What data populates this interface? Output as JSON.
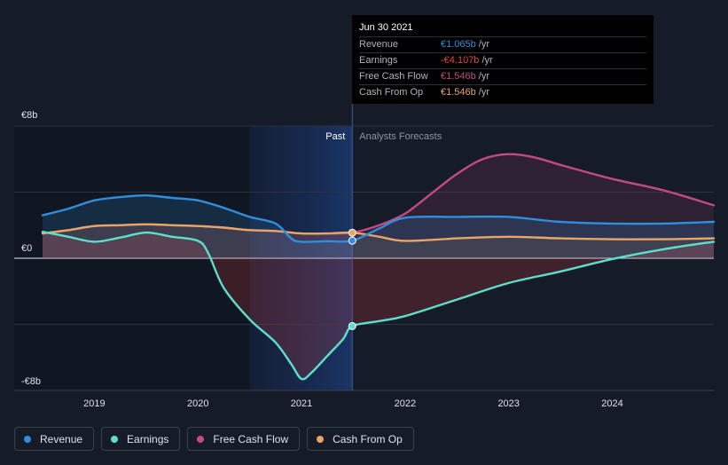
{
  "chart_data": {
    "type": "line",
    "y_label_top": "€8b",
    "y_label_zero": "€0",
    "y_label_bottom": "-€8b",
    "ylim": [
      -8,
      8
    ],
    "xlim": [
      2018.5,
      2024.98
    ],
    "x_ticks": [
      2019,
      2020,
      2021,
      2022,
      2023,
      2024
    ],
    "x_tick_labels": [
      "2019",
      "2020",
      "2021",
      "2022",
      "2023",
      "2024"
    ],
    "divider_x": 2021.49,
    "highlight_start_x": 2020.5,
    "past_label": "Past",
    "forecast_label": "Analysts Forecasts",
    "series": [
      {
        "name": "Revenue",
        "key": "revenue",
        "color": "#2f8fde",
        "points": [
          [
            2018.5,
            2.6
          ],
          [
            2018.75,
            3.0
          ],
          [
            2019.0,
            3.5
          ],
          [
            2019.25,
            3.7
          ],
          [
            2019.5,
            3.8
          ],
          [
            2019.75,
            3.65
          ],
          [
            2020.0,
            3.5
          ],
          [
            2020.25,
            3.05
          ],
          [
            2020.5,
            2.5
          ],
          [
            2020.75,
            2.1
          ],
          [
            2020.9,
            1.2
          ],
          [
            2021.0,
            1.0
          ],
          [
            2021.25,
            1.03
          ],
          [
            2021.49,
            1.065
          ],
          [
            2021.75,
            1.8
          ],
          [
            2022.0,
            2.45
          ],
          [
            2022.5,
            2.5
          ],
          [
            2023.0,
            2.5
          ],
          [
            2023.5,
            2.2
          ],
          [
            2024.0,
            2.1
          ],
          [
            2024.5,
            2.1
          ],
          [
            2024.98,
            2.2
          ]
        ]
      },
      {
        "name": "Earnings",
        "key": "earnings",
        "color": "#5de0cb",
        "points": [
          [
            2018.5,
            1.6
          ],
          [
            2018.75,
            1.3
          ],
          [
            2019.0,
            1.0
          ],
          [
            2019.25,
            1.25
          ],
          [
            2019.5,
            1.55
          ],
          [
            2019.75,
            1.3
          ],
          [
            2020.0,
            1.05
          ],
          [
            2020.1,
            0.3
          ],
          [
            2020.25,
            -1.8
          ],
          [
            2020.5,
            -3.7
          ],
          [
            2020.75,
            -5.1
          ],
          [
            2020.9,
            -6.4
          ],
          [
            2021.0,
            -7.3
          ],
          [
            2021.1,
            -6.9
          ],
          [
            2021.25,
            -5.9
          ],
          [
            2021.4,
            -4.9
          ],
          [
            2021.49,
            -4.107
          ],
          [
            2021.75,
            -3.8
          ],
          [
            2022.0,
            -3.5
          ],
          [
            2022.5,
            -2.5
          ],
          [
            2023.0,
            -1.5
          ],
          [
            2023.5,
            -0.8
          ],
          [
            2024.0,
            -0.05
          ],
          [
            2024.5,
            0.55
          ],
          [
            2024.98,
            1.0
          ]
        ]
      },
      {
        "name": "Free Cash Flow",
        "key": "fcf",
        "color": "#c44a86",
        "points": [
          [
            2018.5,
            1.5
          ],
          [
            2018.75,
            1.7
          ],
          [
            2019.0,
            1.95
          ],
          [
            2019.25,
            2.0
          ],
          [
            2019.5,
            2.05
          ],
          [
            2019.75,
            2.0
          ],
          [
            2020.0,
            1.95
          ],
          [
            2020.25,
            1.85
          ],
          [
            2020.5,
            1.7
          ],
          [
            2020.75,
            1.65
          ],
          [
            2021.0,
            1.5
          ],
          [
            2021.25,
            1.5
          ],
          [
            2021.49,
            1.546
          ],
          [
            2021.75,
            2.0
          ],
          [
            2022.0,
            2.7
          ],
          [
            2022.25,
            3.9
          ],
          [
            2022.5,
            5.1
          ],
          [
            2022.75,
            6.0
          ],
          [
            2023.0,
            6.3
          ],
          [
            2023.25,
            6.1
          ],
          [
            2023.5,
            5.65
          ],
          [
            2024.0,
            4.8
          ],
          [
            2024.5,
            4.1
          ],
          [
            2024.98,
            3.2
          ]
        ]
      },
      {
        "name": "Cash From Op",
        "key": "cfo",
        "color": "#e7a665",
        "points": [
          [
            2018.5,
            1.5
          ],
          [
            2018.75,
            1.7
          ],
          [
            2019.0,
            1.95
          ],
          [
            2019.25,
            2.0
          ],
          [
            2019.5,
            2.05
          ],
          [
            2019.75,
            2.0
          ],
          [
            2020.0,
            1.95
          ],
          [
            2020.25,
            1.85
          ],
          [
            2020.5,
            1.7
          ],
          [
            2020.75,
            1.65
          ],
          [
            2021.0,
            1.5
          ],
          [
            2021.25,
            1.5
          ],
          [
            2021.49,
            1.546
          ],
          [
            2021.75,
            1.3
          ],
          [
            2022.0,
            1.05
          ],
          [
            2022.5,
            1.2
          ],
          [
            2023.0,
            1.3
          ],
          [
            2023.5,
            1.2
          ],
          [
            2024.0,
            1.15
          ],
          [
            2024.5,
            1.15
          ],
          [
            2024.98,
            1.2
          ]
        ]
      }
    ]
  },
  "tooltip": {
    "date": "Jun 30 2021",
    "rows": [
      {
        "label": "Revenue",
        "value": "€1.065b",
        "unit": "/yr",
        "color": "#2f8fde"
      },
      {
        "label": "Earnings",
        "value": "-€4.107b",
        "unit": "/yr",
        "color": "#e8433f"
      },
      {
        "label": "Free Cash Flow",
        "value": "€1.546b",
        "unit": "/yr",
        "color": "#c44a86"
      },
      {
        "label": "Cash From Op",
        "value": "€1.546b",
        "unit": "/yr",
        "color": "#e7a665"
      }
    ]
  },
  "legend": [
    {
      "label": "Revenue",
      "color": "#2f8fde"
    },
    {
      "label": "Earnings",
      "color": "#5de0cb"
    },
    {
      "label": "Free Cash Flow",
      "color": "#c44a86"
    },
    {
      "label": "Cash From Op",
      "color": "#e7a665"
    }
  ]
}
